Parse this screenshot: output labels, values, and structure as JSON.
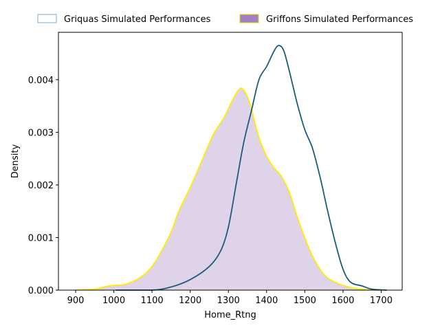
{
  "chart_data": {
    "type": "area",
    "title": "",
    "xlabel": "Home_Rtng",
    "ylabel": "Density",
    "xlim": [
      855,
      1755
    ],
    "ylim": [
      0,
      0.0049
    ],
    "xticks": [
      900,
      1000,
      1100,
      1200,
      1300,
      1400,
      1500,
      1600,
      1700
    ],
    "yticks": [
      0.0,
      0.001,
      0.002,
      0.003,
      0.004
    ],
    "ytick_labels": [
      "0.000",
      "0.001",
      "0.002",
      "0.003",
      "0.004"
    ],
    "grid": false,
    "legend": "top, above plot, two columns",
    "series": [
      {
        "name": "Griquas Simulated Performances",
        "style": "line",
        "line_color": "#1b5a7a",
        "legend_face": "#ffffff",
        "legend_edge": "#7fa9c4",
        "points": [
          [
            1005,
            0.0
          ],
          [
            1100,
            0.0
          ],
          [
            1150,
            6e-05
          ],
          [
            1200,
            0.0002
          ],
          [
            1250,
            0.00045
          ],
          [
            1280,
            0.00075
          ],
          [
            1300,
            0.0012
          ],
          [
            1320,
            0.002
          ],
          [
            1340,
            0.0028
          ],
          [
            1360,
            0.0034
          ],
          [
            1380,
            0.004
          ],
          [
            1400,
            0.00425
          ],
          [
            1420,
            0.00455
          ],
          [
            1432,
            0.00465
          ],
          [
            1445,
            0.00455
          ],
          [
            1460,
            0.00415
          ],
          [
            1480,
            0.00355
          ],
          [
            1500,
            0.00305
          ],
          [
            1520,
            0.0027
          ],
          [
            1540,
            0.00215
          ],
          [
            1560,
            0.0015
          ],
          [
            1580,
            0.0009
          ],
          [
            1600,
            0.0004
          ],
          [
            1620,
            0.00015
          ],
          [
            1650,
            8e-05
          ],
          [
            1675,
            2e-05
          ],
          [
            1715,
            0.0
          ]
        ]
      },
      {
        "name": "Griffons Simulated Performances",
        "style": "filled",
        "line_color": "#ffee00",
        "fill_color": "#9b79bd",
        "fill_opacity": 0.33,
        "legend_face": "#a082c4",
        "legend_edge": "#e6d200",
        "points": [
          [
            900,
            0.0
          ],
          [
            950,
            2e-05
          ],
          [
            980,
            7e-05
          ],
          [
            1000,
            9e-05
          ],
          [
            1030,
            0.00011
          ],
          [
            1060,
            0.0002
          ],
          [
            1080,
            0.0003
          ],
          [
            1100,
            0.00045
          ],
          [
            1120,
            0.00068
          ],
          [
            1150,
            0.0011
          ],
          [
            1170,
            0.0015
          ],
          [
            1200,
            0.00195
          ],
          [
            1230,
            0.00245
          ],
          [
            1260,
            0.00295
          ],
          [
            1290,
            0.0033
          ],
          [
            1310,
            0.0036
          ],
          [
            1330,
            0.00383
          ],
          [
            1345,
            0.00375
          ],
          [
            1360,
            0.00345
          ],
          [
            1380,
            0.0029
          ],
          [
            1400,
            0.00255
          ],
          [
            1420,
            0.00232
          ],
          [
            1440,
            0.00215
          ],
          [
            1460,
            0.00185
          ],
          [
            1480,
            0.0014
          ],
          [
            1500,
            0.001
          ],
          [
            1520,
            0.00065
          ],
          [
            1550,
            0.0003
          ],
          [
            1580,
            0.00015
          ],
          [
            1620,
            5e-05
          ],
          [
            1660,
            1e-05
          ],
          [
            1700,
            0.0
          ]
        ]
      }
    ]
  }
}
